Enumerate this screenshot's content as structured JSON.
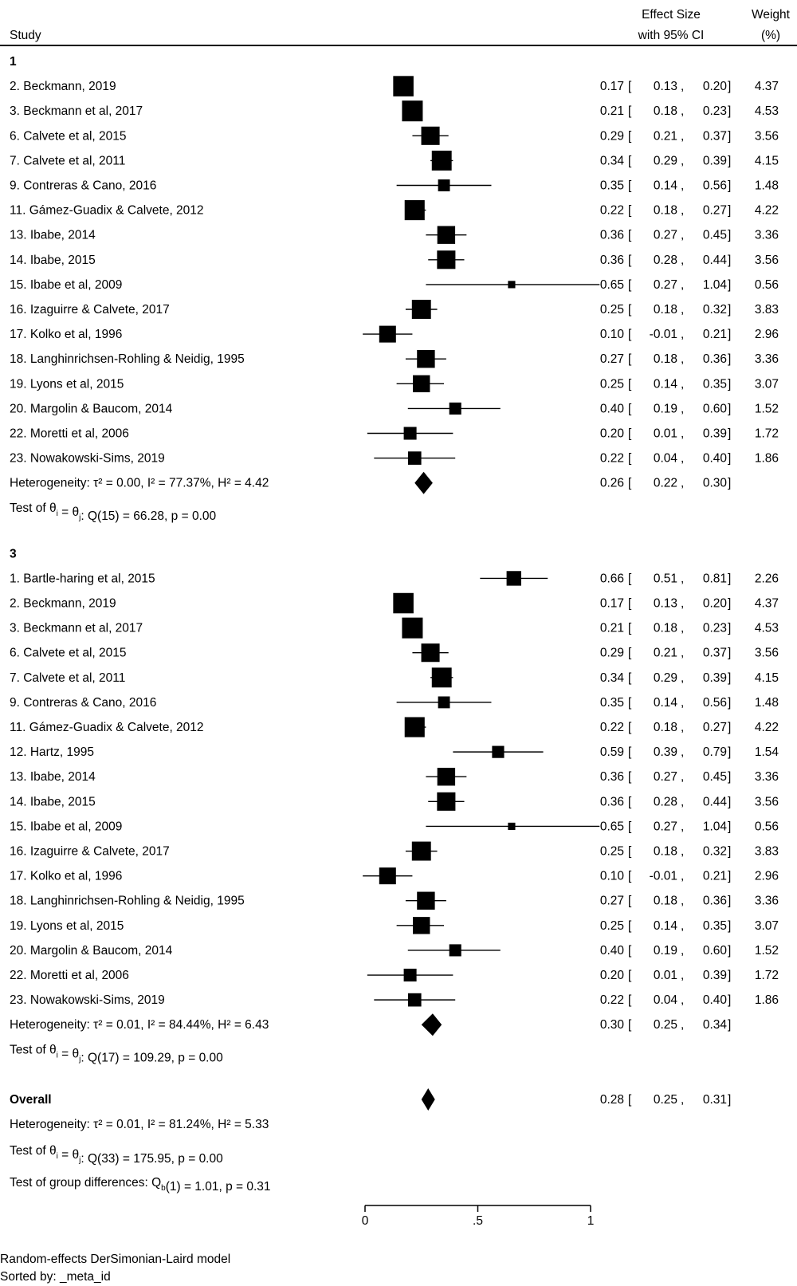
{
  "chart_data": {
    "type": "forest",
    "columns": {
      "study": "Study",
      "effect_line1": "Effect Size",
      "effect_line2": "with 95% CI",
      "weight_line1": "Weight",
      "weight_line2": "(%)"
    },
    "xlim": [
      0,
      1
    ],
    "xticks": [
      {
        "value": 0,
        "label": "0"
      },
      {
        "value": 0.5,
        "label": ".5"
      },
      {
        "value": 1,
        "label": "1"
      }
    ],
    "groups": [
      {
        "label": "1",
        "studies": [
          {
            "name": "2. Beckmann, 2019",
            "es": 0.17,
            "lo": 0.13,
            "hi": 0.2,
            "es_text": "0.17",
            "lo_text": "0.13",
            "hi_text": "0.20",
            "weight": 4.37,
            "weight_text": "4.37"
          },
          {
            "name": "3. Beckmann et al, 2017",
            "es": 0.21,
            "lo": 0.18,
            "hi": 0.23,
            "es_text": "0.21",
            "lo_text": "0.18",
            "hi_text": "0.23",
            "weight": 4.53,
            "weight_text": "4.53"
          },
          {
            "name": "6. Calvete et al, 2015",
            "es": 0.29,
            "lo": 0.21,
            "hi": 0.37,
            "es_text": "0.29",
            "lo_text": "0.21",
            "hi_text": "0.37",
            "weight": 3.56,
            "weight_text": "3.56"
          },
          {
            "name": "7. Calvete et al, 2011",
            "es": 0.34,
            "lo": 0.29,
            "hi": 0.39,
            "es_text": "0.34",
            "lo_text": "0.29",
            "hi_text": "0.39",
            "weight": 4.15,
            "weight_text": "4.15"
          },
          {
            "name": "9. Contreras & Cano, 2016",
            "es": 0.35,
            "lo": 0.14,
            "hi": 0.56,
            "es_text": "0.35",
            "lo_text": "0.14",
            "hi_text": "0.56",
            "weight": 1.48,
            "weight_text": "1.48"
          },
          {
            "name": "11. Gámez-Guadix & Calvete, 2012",
            "es": 0.22,
            "lo": 0.18,
            "hi": 0.27,
            "es_text": "0.22",
            "lo_text": "0.18",
            "hi_text": "0.27",
            "weight": 4.22,
            "weight_text": "4.22"
          },
          {
            "name": "13. Ibabe, 2014",
            "es": 0.36,
            "lo": 0.27,
            "hi": 0.45,
            "es_text": "0.36",
            "lo_text": "0.27",
            "hi_text": "0.45",
            "weight": 3.36,
            "weight_text": "3.36"
          },
          {
            "name": "14. Ibabe, 2015",
            "es": 0.36,
            "lo": 0.28,
            "hi": 0.44,
            "es_text": "0.36",
            "lo_text": "0.28",
            "hi_text": "0.44",
            "weight": 3.56,
            "weight_text": "3.56"
          },
          {
            "name": "15. Ibabe et al, 2009",
            "es": 0.65,
            "lo": 0.27,
            "hi": 1.04,
            "es_text": "0.65",
            "lo_text": "0.27",
            "hi_text": "1.04",
            "weight": 0.56,
            "weight_text": "0.56"
          },
          {
            "name": "16. Izaguirre & Calvete, 2017",
            "es": 0.25,
            "lo": 0.18,
            "hi": 0.32,
            "es_text": "0.25",
            "lo_text": "0.18",
            "hi_text": "0.32",
            "weight": 3.83,
            "weight_text": "3.83"
          },
          {
            "name": "17. Kolko et al, 1996",
            "es": 0.1,
            "lo": -0.01,
            "hi": 0.21,
            "es_text": "0.10",
            "lo_text": "-0.01",
            "hi_text": "0.21",
            "weight": 2.96,
            "weight_text": "2.96"
          },
          {
            "name": "18. Langhinrichsen-Rohling & Neidig, 1995",
            "es": 0.27,
            "lo": 0.18,
            "hi": 0.36,
            "es_text": "0.27",
            "lo_text": "0.18",
            "hi_text": "0.36",
            "weight": 3.36,
            "weight_text": "3.36"
          },
          {
            "name": "19. Lyons et al, 2015",
            "es": 0.25,
            "lo": 0.14,
            "hi": 0.35,
            "es_text": "0.25",
            "lo_text": "0.14",
            "hi_text": "0.35",
            "weight": 3.07,
            "weight_text": "3.07"
          },
          {
            "name": "20. Margolin & Baucom, 2014",
            "es": 0.4,
            "lo": 0.19,
            "hi": 0.6,
            "es_text": "0.40",
            "lo_text": "0.19",
            "hi_text": "0.60",
            "weight": 1.52,
            "weight_text": "1.52"
          },
          {
            "name": "22. Moretti et al, 2006",
            "es": 0.2,
            "lo": 0.01,
            "hi": 0.39,
            "es_text": "0.20",
            "lo_text": "0.01",
            "hi_text": "0.39",
            "weight": 1.72,
            "weight_text": "1.72"
          },
          {
            "name": "23. Nowakowski-Sims, 2019",
            "es": 0.22,
            "lo": 0.04,
            "hi": 0.4,
            "es_text": "0.22",
            "lo_text": "0.04",
            "hi_text": "0.40",
            "weight": 1.86,
            "weight_text": "1.86"
          }
        ],
        "summary": {
          "es": 0.26,
          "lo": 0.22,
          "hi": 0.3,
          "es_text": "0.26",
          "lo_text": "0.22",
          "hi_text": "0.30",
          "heterogeneity": "Heterogeneity: τ² = 0.00, I² = 77.37%, H² = 4.42"
        },
        "test": {
          "prefix": "Test of θ",
          "sub1": "i",
          "mid": " = θ",
          "sub2": "j",
          "rest": ": Q(15) = 66.28, p = 0.00"
        }
      },
      {
        "label": "3",
        "studies": [
          {
            "name": "1. Bartle-haring et al, 2015",
            "es": 0.66,
            "lo": 0.51,
            "hi": 0.81,
            "es_text": "0.66",
            "lo_text": "0.51",
            "hi_text": "0.81",
            "weight": 2.26,
            "weight_text": "2.26"
          },
          {
            "name": "2. Beckmann, 2019",
            "es": 0.17,
            "lo": 0.13,
            "hi": 0.2,
            "es_text": "0.17",
            "lo_text": "0.13",
            "hi_text": "0.20",
            "weight": 4.37,
            "weight_text": "4.37"
          },
          {
            "name": "3. Beckmann et al, 2017",
            "es": 0.21,
            "lo": 0.18,
            "hi": 0.23,
            "es_text": "0.21",
            "lo_text": "0.18",
            "hi_text": "0.23",
            "weight": 4.53,
            "weight_text": "4.53"
          },
          {
            "name": "6. Calvete et al, 2015",
            "es": 0.29,
            "lo": 0.21,
            "hi": 0.37,
            "es_text": "0.29",
            "lo_text": "0.21",
            "hi_text": "0.37",
            "weight": 3.56,
            "weight_text": "3.56"
          },
          {
            "name": "7. Calvete et al, 2011",
            "es": 0.34,
            "lo": 0.29,
            "hi": 0.39,
            "es_text": "0.34",
            "lo_text": "0.29",
            "hi_text": "0.39",
            "weight": 4.15,
            "weight_text": "4.15"
          },
          {
            "name": "9. Contreras & Cano, 2016",
            "es": 0.35,
            "lo": 0.14,
            "hi": 0.56,
            "es_text": "0.35",
            "lo_text": "0.14",
            "hi_text": "0.56",
            "weight": 1.48,
            "weight_text": "1.48"
          },
          {
            "name": "11. Gámez-Guadix & Calvete, 2012",
            "es": 0.22,
            "lo": 0.18,
            "hi": 0.27,
            "es_text": "0.22",
            "lo_text": "0.18",
            "hi_text": "0.27",
            "weight": 4.22,
            "weight_text": "4.22"
          },
          {
            "name": "12. Hartz, 1995",
            "es": 0.59,
            "lo": 0.39,
            "hi": 0.79,
            "es_text": "0.59",
            "lo_text": "0.39",
            "hi_text": "0.79",
            "weight": 1.54,
            "weight_text": "1.54"
          },
          {
            "name": "13. Ibabe, 2014",
            "es": 0.36,
            "lo": 0.27,
            "hi": 0.45,
            "es_text": "0.36",
            "lo_text": "0.27",
            "hi_text": "0.45",
            "weight": 3.36,
            "weight_text": "3.36"
          },
          {
            "name": "14. Ibabe, 2015",
            "es": 0.36,
            "lo": 0.28,
            "hi": 0.44,
            "es_text": "0.36",
            "lo_text": "0.28",
            "hi_text": "0.44",
            "weight": 3.56,
            "weight_text": "3.56"
          },
          {
            "name": "15. Ibabe et al, 2009",
            "es": 0.65,
            "lo": 0.27,
            "hi": 1.04,
            "es_text": "0.65",
            "lo_text": "0.27",
            "hi_text": "1.04",
            "weight": 0.56,
            "weight_text": "0.56"
          },
          {
            "name": "16. Izaguirre & Calvete, 2017",
            "es": 0.25,
            "lo": 0.18,
            "hi": 0.32,
            "es_text": "0.25",
            "lo_text": "0.18",
            "hi_text": "0.32",
            "weight": 3.83,
            "weight_text": "3.83"
          },
          {
            "name": "17. Kolko et al, 1996",
            "es": 0.1,
            "lo": -0.01,
            "hi": 0.21,
            "es_text": "0.10",
            "lo_text": "-0.01",
            "hi_text": "0.21",
            "weight": 2.96,
            "weight_text": "2.96"
          },
          {
            "name": "18. Langhinrichsen-Rohling & Neidig, 1995",
            "es": 0.27,
            "lo": 0.18,
            "hi": 0.36,
            "es_text": "0.27",
            "lo_text": "0.18",
            "hi_text": "0.36",
            "weight": 3.36,
            "weight_text": "3.36"
          },
          {
            "name": "19. Lyons et al, 2015",
            "es": 0.25,
            "lo": 0.14,
            "hi": 0.35,
            "es_text": "0.25",
            "lo_text": "0.14",
            "hi_text": "0.35",
            "weight": 3.07,
            "weight_text": "3.07"
          },
          {
            "name": "20. Margolin & Baucom, 2014",
            "es": 0.4,
            "lo": 0.19,
            "hi": 0.6,
            "es_text": "0.40",
            "lo_text": "0.19",
            "hi_text": "0.60",
            "weight": 1.52,
            "weight_text": "1.52"
          },
          {
            "name": "22. Moretti et al, 2006",
            "es": 0.2,
            "lo": 0.01,
            "hi": 0.39,
            "es_text": "0.20",
            "lo_text": "0.01",
            "hi_text": "0.39",
            "weight": 1.72,
            "weight_text": "1.72"
          },
          {
            "name": "23. Nowakowski-Sims, 2019",
            "es": 0.22,
            "lo": 0.04,
            "hi": 0.4,
            "es_text": "0.22",
            "lo_text": "0.04",
            "hi_text": "0.40",
            "weight": 1.86,
            "weight_text": "1.86"
          }
        ],
        "summary": {
          "es": 0.3,
          "lo": 0.25,
          "hi": 0.34,
          "es_text": "0.30",
          "lo_text": "0.25",
          "hi_text": "0.34",
          "heterogeneity": "Heterogeneity: τ² = 0.01, I² = 84.44%, H² = 6.43"
        },
        "test": {
          "prefix": "Test of θ",
          "sub1": "i",
          "mid": " = θ",
          "sub2": "j",
          "rest": ": Q(17) = 109.29, p = 0.00"
        }
      }
    ],
    "overall": {
      "label": "Overall",
      "es": 0.28,
      "lo": 0.25,
      "hi": 0.31,
      "es_text": "0.28",
      "lo_text": "0.25",
      "hi_text": "0.31",
      "heterogeneity": "Heterogeneity: τ² = 0.01, I² = 81.24%, H² = 5.33",
      "test": {
        "prefix": "Test of θ",
        "sub1": "i",
        "mid": " = θ",
        "sub2": "j",
        "rest": ": Q(33) = 175.95, p = 0.00"
      },
      "group_diff": {
        "prefix": "Test of group differences: Q",
        "sub": "b",
        "rest": "(1) = 1.01, p = 0.31"
      }
    },
    "footnotes": [
      "Random-effects DerSimonian-Laird model",
      "Sorted by: _meta_id"
    ]
  }
}
